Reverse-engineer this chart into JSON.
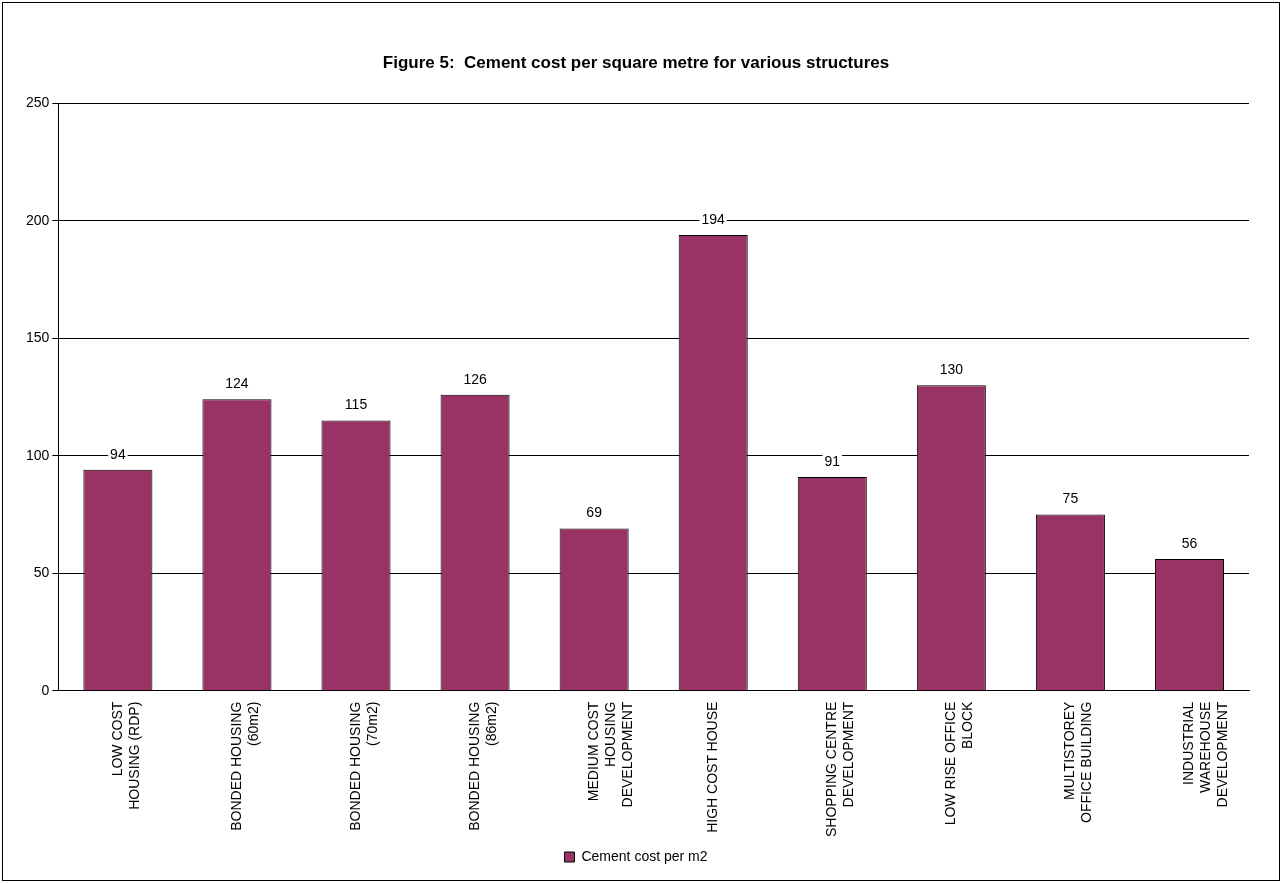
{
  "chart_data": {
    "type": "bar",
    "title": "Figure 5:  Cement cost per square metre for various structures",
    "categories": [
      "LOW COST HOUSING (RDP)",
      "BONDED HOUSING (60m2)",
      "BONDED HOUSING (70m2)",
      "BONDED HOUSING (86m2)",
      "MEDIUM COST HOUSING DEVELOPMENT",
      "HIGH COST HOUSE",
      "SHOPPING CENTRE DEVELOPMENT",
      "LOW RISE OFFICE BLOCK",
      "MULTISTOREY OFFICE BUILDING",
      "INDUSTRIAL WAREHOUSE DEVELOPMENT"
    ],
    "series": [
      {
        "name": "Cement cost per m2",
        "color": "#993366",
        "values": [
          94,
          124,
          115,
          126,
          69,
          194,
          91,
          130,
          75,
          56
        ]
      }
    ],
    "ylim": [
      0,
      250
    ],
    "yticks": [
      0,
      50,
      100,
      150,
      200,
      250
    ],
    "grid": "y",
    "legend": "bottom",
    "data_labels": true
  }
}
